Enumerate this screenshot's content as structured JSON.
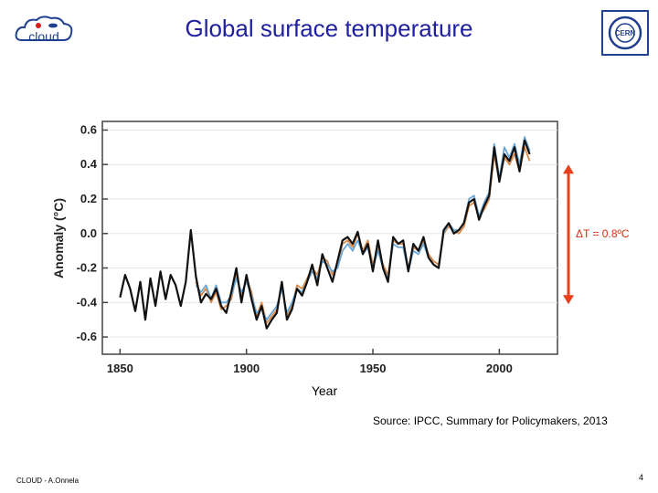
{
  "header": {
    "title": "Global surface temperature",
    "cloud_logo_text": "cloud",
    "cern_logo_text": "CERN"
  },
  "source": "Source: IPCC, Summary for Policymakers, 2013",
  "footer": {
    "author": "CLOUD - A.Onnela",
    "page": "4"
  },
  "colors": {
    "title": "#1f1fa0",
    "black_series": "#111111",
    "orange_series": "#d98a4a",
    "blue_series": "#6aa7d6",
    "annotation": "#e8401c"
  },
  "chart_data": {
    "type": "line",
    "title": "",
    "xlabel": "Year",
    "ylabel": "Anomaly (°C)",
    "xlim": [
      1843,
      2023
    ],
    "ylim": [
      -0.7,
      0.65
    ],
    "xticks": [
      1850,
      1900,
      1950,
      2000
    ],
    "yticks": [
      0.6,
      0.4,
      0.2,
      0.0,
      -0.2,
      -0.4,
      -0.6
    ],
    "ytick_labels": [
      "0.6",
      "0.4",
      "0.2",
      "0.0",
      "-0.2",
      "-0.4",
      "-0.6"
    ],
    "annotation": {
      "text": "ΔT = 0.8ºC",
      "from": -0.41,
      "to": 0.4
    },
    "series": [
      {
        "name": "black",
        "x": [
          1850,
          1852,
          1854,
          1856,
          1858,
          1860,
          1862,
          1864,
          1866,
          1868,
          1870,
          1872,
          1874,
          1876,
          1878,
          1880,
          1882,
          1884,
          1886,
          1888,
          1890,
          1892,
          1894,
          1896,
          1898,
          1900,
          1902,
          1904,
          1906,
          1908,
          1910,
          1912,
          1914,
          1916,
          1918,
          1920,
          1922,
          1924,
          1926,
          1928,
          1930,
          1932,
          1934,
          1936,
          1938,
          1940,
          1942,
          1944,
          1946,
          1948,
          1950,
          1952,
          1954,
          1956,
          1958,
          1960,
          1962,
          1964,
          1966,
          1968,
          1970,
          1972,
          1974,
          1976,
          1978,
          1980,
          1982,
          1984,
          1986,
          1988,
          1990,
          1992,
          1994,
          1996,
          1998,
          2000,
          2002,
          2004,
          2006,
          2008,
          2010,
          2012
        ],
        "values": [
          -0.37,
          -0.24,
          -0.32,
          -0.45,
          -0.28,
          -0.5,
          -0.26,
          -0.42,
          -0.22,
          -0.38,
          -0.24,
          -0.3,
          -0.42,
          -0.28,
          0.02,
          -0.25,
          -0.4,
          -0.35,
          -0.38,
          -0.32,
          -0.42,
          -0.46,
          -0.34,
          -0.2,
          -0.4,
          -0.24,
          -0.38,
          -0.5,
          -0.42,
          -0.55,
          -0.5,
          -0.46,
          -0.28,
          -0.5,
          -0.44,
          -0.32,
          -0.36,
          -0.28,
          -0.18,
          -0.3,
          -0.12,
          -0.2,
          -0.28,
          -0.16,
          -0.04,
          -0.02,
          -0.06,
          0.01,
          -0.12,
          -0.06,
          -0.22,
          -0.04,
          -0.2,
          -0.28,
          -0.02,
          -0.06,
          -0.04,
          -0.22,
          -0.06,
          -0.1,
          -0.02,
          -0.14,
          -0.18,
          -0.2,
          0.02,
          0.06,
          0.0,
          0.02,
          0.06,
          0.18,
          0.2,
          0.08,
          0.16,
          0.22,
          0.5,
          0.3,
          0.46,
          0.42,
          0.5,
          0.36,
          0.54,
          0.46
        ]
      },
      {
        "name": "orange",
        "x": [
          1880,
          1882,
          1884,
          1886,
          1888,
          1890,
          1892,
          1894,
          1896,
          1898,
          1900,
          1902,
          1904,
          1906,
          1908,
          1910,
          1912,
          1914,
          1916,
          1918,
          1920,
          1922,
          1924,
          1926,
          1928,
          1930,
          1932,
          1934,
          1936,
          1938,
          1940,
          1942,
          1944,
          1946,
          1948,
          1950,
          1952,
          1954,
          1956,
          1958,
          1960,
          1962,
          1964,
          1966,
          1968,
          1970,
          1972,
          1974,
          1976,
          1978,
          1980,
          1982,
          1984,
          1986,
          1988,
          1990,
          1992,
          1994,
          1996,
          1998,
          2000,
          2002,
          2004,
          2006,
          2008,
          2010,
          2012
        ],
        "values": [
          -0.28,
          -0.36,
          -0.32,
          -0.4,
          -0.34,
          -0.44,
          -0.42,
          -0.38,
          -0.24,
          -0.36,
          -0.26,
          -0.34,
          -0.48,
          -0.4,
          -0.52,
          -0.48,
          -0.44,
          -0.3,
          -0.48,
          -0.42,
          -0.3,
          -0.32,
          -0.26,
          -0.2,
          -0.24,
          -0.14,
          -0.16,
          -0.24,
          -0.18,
          -0.06,
          -0.04,
          -0.08,
          0.0,
          -0.1,
          -0.04,
          -0.18,
          -0.08,
          -0.18,
          -0.24,
          -0.04,
          -0.06,
          -0.06,
          -0.2,
          -0.08,
          -0.1,
          -0.04,
          -0.12,
          -0.16,
          -0.18,
          0.0,
          0.04,
          0.02,
          0.0,
          0.04,
          0.16,
          0.18,
          0.1,
          0.14,
          0.2,
          0.46,
          0.3,
          0.44,
          0.4,
          0.46,
          0.36,
          0.5,
          0.42
        ]
      },
      {
        "name": "blue",
        "x": [
          1880,
          1882,
          1884,
          1886,
          1888,
          1890,
          1892,
          1894,
          1896,
          1898,
          1900,
          1902,
          1904,
          1906,
          1908,
          1910,
          1912,
          1914,
          1916,
          1918,
          1920,
          1922,
          1924,
          1926,
          1928,
          1930,
          1932,
          1934,
          1936,
          1938,
          1940,
          1942,
          1944,
          1946,
          1948,
          1950,
          1952,
          1954,
          1956,
          1958,
          1960,
          1962,
          1964,
          1966,
          1968,
          1970,
          1972,
          1974,
          1976,
          1978,
          1980,
          1982,
          1984,
          1986,
          1988,
          1990,
          1992,
          1994,
          1996,
          1998,
          2000,
          2002,
          2004,
          2006,
          2008,
          2010,
          2012
        ],
        "values": [
          -0.3,
          -0.34,
          -0.3,
          -0.38,
          -0.3,
          -0.4,
          -0.4,
          -0.36,
          -0.26,
          -0.34,
          -0.28,
          -0.36,
          -0.46,
          -0.44,
          -0.5,
          -0.46,
          -0.42,
          -0.32,
          -0.46,
          -0.4,
          -0.32,
          -0.34,
          -0.28,
          -0.22,
          -0.26,
          -0.16,
          -0.18,
          -0.22,
          -0.2,
          -0.1,
          -0.06,
          -0.1,
          -0.04,
          -0.12,
          -0.08,
          -0.2,
          -0.1,
          -0.2,
          -0.26,
          -0.06,
          -0.08,
          -0.08,
          -0.22,
          -0.1,
          -0.12,
          -0.06,
          -0.14,
          -0.18,
          -0.2,
          0.0,
          0.06,
          0.02,
          0.02,
          0.06,
          0.2,
          0.22,
          0.1,
          0.18,
          0.24,
          0.52,
          0.32,
          0.5,
          0.44,
          0.52,
          0.4,
          0.56,
          0.48
        ]
      }
    ]
  }
}
